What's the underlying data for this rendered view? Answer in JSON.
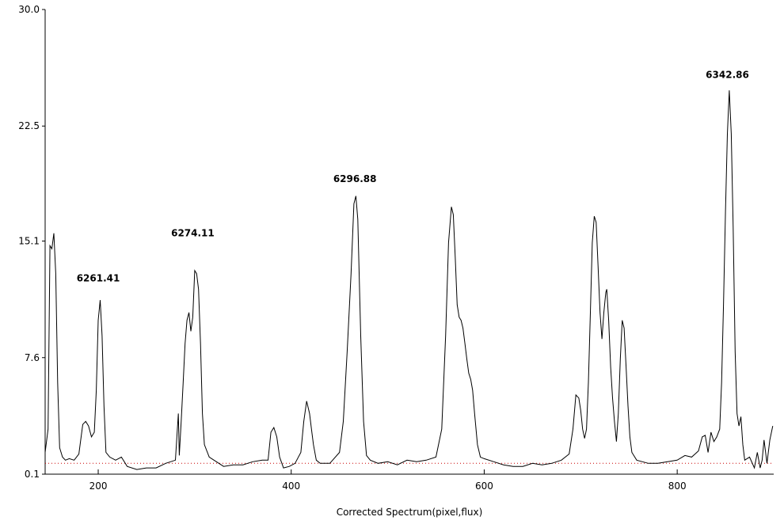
{
  "chart_data": {
    "type": "line",
    "title": "",
    "xlabel": "Corrected Spectrum(pixel,flux)",
    "ylabel": "",
    "xlim": [
      145,
      900
    ],
    "ylim": [
      0.1,
      30.0
    ],
    "x_ticks": [
      200,
      400,
      600,
      800
    ],
    "y_ticks": [
      {
        "value": 0.1,
        "label": "0.1"
      },
      {
        "value": 7.6,
        "label": "7.6"
      },
      {
        "value": 15.1,
        "label": "15.1"
      },
      {
        "value": 22.5,
        "label": "22.5"
      },
      {
        "value": 30.0,
        "label": "30.0"
      }
    ],
    "grid": false,
    "baseline": {
      "value": 0.8,
      "color": "#cc0000",
      "style": "dotted"
    },
    "series": [
      {
        "color": "#000000",
        "points": [
          [
            145,
            1.5
          ],
          [
            148,
            3.0
          ],
          [
            150,
            14.8
          ],
          [
            152,
            14.6
          ],
          [
            154,
            15.6
          ],
          [
            156,
            13.0
          ],
          [
            158,
            6.0
          ],
          [
            160,
            1.8
          ],
          [
            163,
            1.2
          ],
          [
            166,
            1.0
          ],
          [
            170,
            1.1
          ],
          [
            175,
            1.0
          ],
          [
            180,
            1.4
          ],
          [
            184,
            3.3
          ],
          [
            187,
            3.5
          ],
          [
            190,
            3.2
          ],
          [
            193,
            2.5
          ],
          [
            196,
            2.8
          ],
          [
            198,
            5.5
          ],
          [
            200,
            10.0
          ],
          [
            202,
            11.3
          ],
          [
            204,
            9.0
          ],
          [
            206,
            4.5
          ],
          [
            208,
            1.5
          ],
          [
            212,
            1.2
          ],
          [
            218,
            1.0
          ],
          [
            224,
            1.2
          ],
          [
            230,
            0.6
          ],
          [
            240,
            0.4
          ],
          [
            250,
            0.5
          ],
          [
            260,
            0.5
          ],
          [
            270,
            0.8
          ],
          [
            280,
            1.0
          ],
          [
            283,
            4.0
          ],
          [
            284,
            1.3
          ],
          [
            286,
            3.5
          ],
          [
            288,
            6.0
          ],
          [
            290,
            8.5
          ],
          [
            292,
            10.0
          ],
          [
            294,
            10.5
          ],
          [
            296,
            9.3
          ],
          [
            298,
            10.2
          ],
          [
            300,
            13.2
          ],
          [
            302,
            13.0
          ],
          [
            304,
            12.0
          ],
          [
            306,
            8.5
          ],
          [
            308,
            4.0
          ],
          [
            310,
            2.0
          ],
          [
            315,
            1.2
          ],
          [
            320,
            1.0
          ],
          [
            330,
            0.6
          ],
          [
            340,
            0.7
          ],
          [
            350,
            0.7
          ],
          [
            360,
            0.9
          ],
          [
            370,
            1.0
          ],
          [
            376,
            1.0
          ],
          [
            379,
            2.8
          ],
          [
            382,
            3.1
          ],
          [
            385,
            2.5
          ],
          [
            388,
            1.2
          ],
          [
            392,
            0.5
          ],
          [
            398,
            0.6
          ],
          [
            404,
            0.8
          ],
          [
            410,
            1.5
          ],
          [
            413,
            3.5
          ],
          [
            416,
            4.8
          ],
          [
            419,
            4.0
          ],
          [
            421,
            3.0
          ],
          [
            423,
            2.0
          ],
          [
            426,
            1.0
          ],
          [
            430,
            0.8
          ],
          [
            440,
            0.8
          ],
          [
            450,
            1.5
          ],
          [
            454,
            3.5
          ],
          [
            458,
            8.0
          ],
          [
            462,
            13.0
          ],
          [
            465,
            17.5
          ],
          [
            467,
            18.0
          ],
          [
            469,
            16.5
          ],
          [
            472,
            9.0
          ],
          [
            475,
            3.5
          ],
          [
            478,
            1.3
          ],
          [
            482,
            1.0
          ],
          [
            490,
            0.8
          ],
          [
            500,
            0.9
          ],
          [
            510,
            0.7
          ],
          [
            520,
            1.0
          ],
          [
            530,
            0.9
          ],
          [
            540,
            1.0
          ],
          [
            550,
            1.2
          ],
          [
            556,
            3.0
          ],
          [
            560,
            9.0
          ],
          [
            563,
            15.0
          ],
          [
            566,
            17.3
          ],
          [
            568,
            16.8
          ],
          [
            570,
            14.0
          ],
          [
            572,
            11.0
          ],
          [
            574,
            10.2
          ],
          [
            576,
            10.0
          ],
          [
            578,
            9.5
          ],
          [
            580,
            8.5
          ],
          [
            582,
            7.5
          ],
          [
            584,
            6.6
          ],
          [
            586,
            6.2
          ],
          [
            588,
            5.5
          ],
          [
            590,
            4.0
          ],
          [
            593,
            2.0
          ],
          [
            596,
            1.2
          ],
          [
            600,
            1.1
          ],
          [
            610,
            0.9
          ],
          [
            620,
            0.7
          ],
          [
            630,
            0.6
          ],
          [
            640,
            0.6
          ],
          [
            650,
            0.8
          ],
          [
            660,
            0.7
          ],
          [
            670,
            0.8
          ],
          [
            680,
            1.0
          ],
          [
            688,
            1.4
          ],
          [
            692,
            3.0
          ],
          [
            695,
            5.2
          ],
          [
            698,
            5.0
          ],
          [
            700,
            4.2
          ],
          [
            702,
            3.0
          ],
          [
            704,
            2.4
          ],
          [
            706,
            3.0
          ],
          [
            708,
            6.0
          ],
          [
            710,
            10.5
          ],
          [
            712,
            15.0
          ],
          [
            714,
            16.7
          ],
          [
            716,
            16.3
          ],
          [
            718,
            13.5
          ],
          [
            720,
            10.5
          ],
          [
            722,
            8.8
          ],
          [
            724,
            10.5
          ],
          [
            726,
            11.8
          ],
          [
            727,
            12.0
          ],
          [
            729,
            10.0
          ],
          [
            731,
            7.0
          ],
          [
            733,
            5.0
          ],
          [
            735,
            3.5
          ],
          [
            737,
            2.2
          ],
          [
            739,
            4.0
          ],
          [
            741,
            7.5
          ],
          [
            743,
            10.0
          ],
          [
            745,
            9.5
          ],
          [
            747,
            7.0
          ],
          [
            749,
            4.5
          ],
          [
            751,
            2.5
          ],
          [
            753,
            1.5
          ],
          [
            758,
            1.0
          ],
          [
            770,
            0.8
          ],
          [
            780,
            0.8
          ],
          [
            790,
            0.9
          ],
          [
            800,
            1.0
          ],
          [
            808,
            1.3
          ],
          [
            815,
            1.2
          ],
          [
            822,
            1.6
          ],
          [
            826,
            2.5
          ],
          [
            829,
            2.6
          ],
          [
            832,
            1.5
          ],
          [
            835,
            2.8
          ],
          [
            838,
            2.2
          ],
          [
            841,
            2.5
          ],
          [
            844,
            3.0
          ],
          [
            846,
            6.0
          ],
          [
            848,
            11.0
          ],
          [
            850,
            17.0
          ],
          [
            852,
            22.0
          ],
          [
            854,
            24.8
          ],
          [
            856,
            22.0
          ],
          [
            858,
            16.0
          ],
          [
            860,
            8.0
          ],
          [
            862,
            4.0
          ],
          [
            864,
            3.2
          ],
          [
            866,
            3.8
          ],
          [
            868,
            2.0
          ],
          [
            870,
            1.0
          ],
          [
            875,
            1.2
          ],
          [
            880,
            0.5
          ],
          [
            883,
            1.5
          ],
          [
            886,
            0.5
          ],
          [
            888,
            1.0
          ],
          [
            890,
            2.3
          ],
          [
            893,
            0.8
          ],
          [
            896,
            2.3
          ],
          [
            899,
            3.2
          ]
        ]
      }
    ],
    "annotations": [
      {
        "text": "6261.41",
        "x": 200,
        "y": 12.5
      },
      {
        "text": "6274.11",
        "x": 298,
        "y": 15.4
      },
      {
        "text": "6296.88",
        "x": 466,
        "y": 18.9
      },
      {
        "text": "6342.86",
        "x": 852,
        "y": 25.6
      }
    ]
  }
}
